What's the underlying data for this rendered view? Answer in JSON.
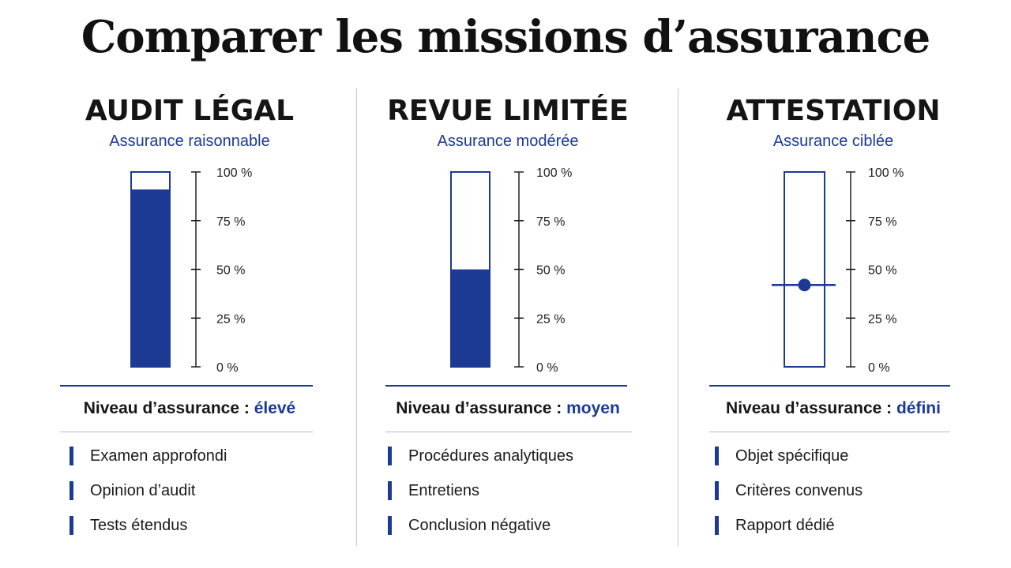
{
  "title": "Comparer les missions d’assurance",
  "scale_ticks": [
    "100 %",
    "75 %",
    "50 %",
    "25 %",
    "0 %"
  ],
  "level_label": "Niveau d’assurance :",
  "colors": {
    "accent": "#1c3a94",
    "text": "#111111",
    "rule": "#bdbdbd"
  },
  "chart_data": [
    {
      "type": "bar",
      "title": "AUDIT LÉGAL",
      "subtitle": "Assurance raisonnable",
      "categories": [
        "AUDIT LÉGAL"
      ],
      "values": [
        91
      ],
      "ylim": [
        0,
        100
      ],
      "y_ticks": [
        "100 %",
        "75 %",
        "50 %",
        "25 %",
        "0 %"
      ],
      "level": "élevé",
      "items": [
        "Examen approfondi",
        "Opinion d’audit",
        "Tests étendus"
      ]
    },
    {
      "type": "bar",
      "title": "REVUE LIMITÉE",
      "subtitle": "Assurance modérée",
      "categories": [
        "REVUE LIMITÉE"
      ],
      "values": [
        50
      ],
      "ylim": [
        0,
        100
      ],
      "y_ticks": [
        "100 %",
        "75 %",
        "50 %",
        "25 %",
        "0 %"
      ],
      "level": "moyen",
      "items": [
        "Procédures analytiques",
        "Entretiens",
        "Conclusion négative"
      ]
    },
    {
      "type": "scatter",
      "title": "ATTESTATION",
      "subtitle": "Assurance ciblée",
      "categories": [
        "ATTESTATION"
      ],
      "values": [
        42
      ],
      "ylim": [
        0,
        100
      ],
      "y_ticks": [
        "100 %",
        "75 %",
        "50 %",
        "25 %",
        "0 %"
      ],
      "level": "défini",
      "items": [
        "Objet spécifique",
        "Critères convenus",
        "Rapport dédié"
      ]
    }
  ]
}
